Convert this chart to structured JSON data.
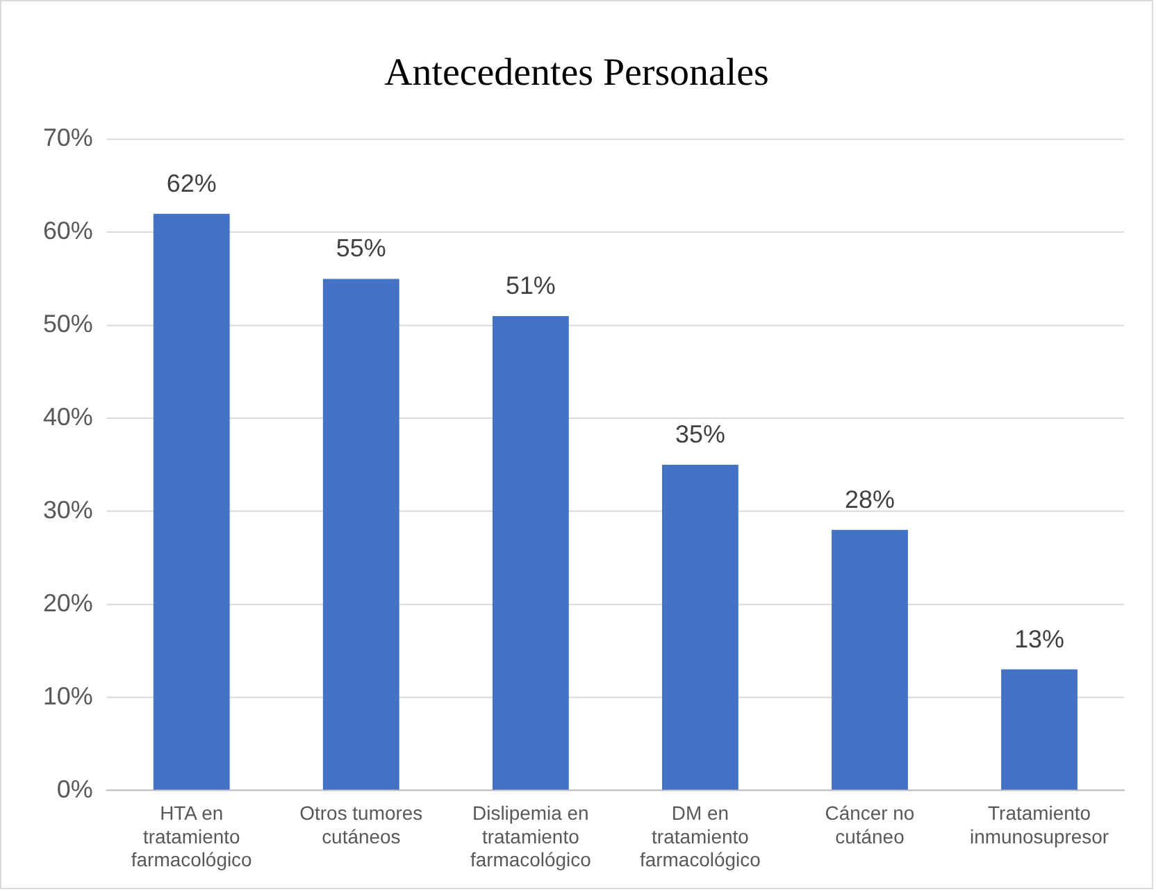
{
  "chart_data": {
    "type": "bar",
    "title": "Antecedentes Personales",
    "categories": [
      "HTA en tratamiento farmacológico",
      "Otros tumores cutáneos",
      "Dislipemia en tratamiento farmacológico",
      "DM en tratamiento farmacológico",
      "Cáncer no cutáneo",
      "Tratamiento inmunosupresor"
    ],
    "values": [
      62,
      55,
      51,
      35,
      28,
      13
    ],
    "color": "#4472c4",
    "value_labels": [
      "62%",
      "55%",
      "51%",
      "35%",
      "28%",
      "13%"
    ],
    "ylim": [
      0,
      70
    ],
    "yticks": [
      {
        "value": 0,
        "label": "0%"
      },
      {
        "value": 10,
        "label": "10%"
      },
      {
        "value": 20,
        "label": "20%"
      },
      {
        "value": 30,
        "label": "30%"
      },
      {
        "value": 40,
        "label": "40%"
      },
      {
        "value": 50,
        "label": "50%"
      },
      {
        "value": 60,
        "label": "60%"
      },
      {
        "value": 70,
        "label": "70%"
      }
    ],
    "grid": "y",
    "legend": false
  }
}
